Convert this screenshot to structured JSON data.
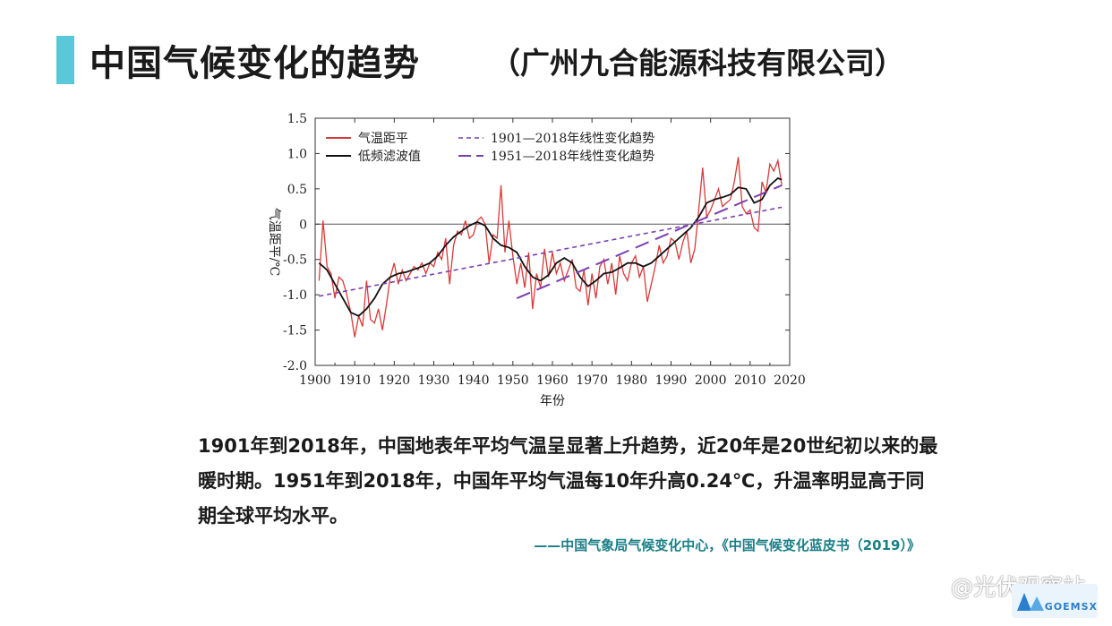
{
  "header": {
    "title": "中国气候变化的趋势",
    "company": "（广州九合能源科技有限公司）",
    "accent_color": "#5ac8d8"
  },
  "chart_data": {
    "type": "line",
    "xlabel": "年份",
    "ylabel": "气温距平/℃",
    "xlim": [
      1900,
      2020
    ],
    "ylim": [
      -2.0,
      1.5
    ],
    "xticks": [
      1900,
      1910,
      1920,
      1930,
      1940,
      1950,
      1960,
      1970,
      1980,
      1990,
      2000,
      2010,
      2020
    ],
    "yticks": [
      -2.0,
      -1.5,
      -1.0,
      -0.5,
      0,
      0.5,
      1.0,
      1.5
    ],
    "ytick_labels": [
      "-2.0",
      "-1.5",
      "-1.0",
      "-0.5",
      "0",
      "0.5",
      "1.0",
      "1.5"
    ],
    "legend_position": "top-left",
    "series": [
      {
        "name": "气温距平",
        "color": "#d93a3a",
        "x": [
          1901,
          1902,
          1903,
          1904,
          1905,
          1906,
          1907,
          1908,
          1909,
          1910,
          1911,
          1912,
          1913,
          1914,
          1915,
          1916,
          1917,
          1918,
          1919,
          1920,
          1921,
          1922,
          1923,
          1924,
          1925,
          1926,
          1927,
          1928,
          1929,
          1930,
          1931,
          1932,
          1933,
          1934,
          1935,
          1936,
          1937,
          1938,
          1939,
          1940,
          1941,
          1942,
          1943,
          1944,
          1945,
          1946,
          1947,
          1948,
          1949,
          1950,
          1951,
          1952,
          1953,
          1954,
          1955,
          1956,
          1957,
          1958,
          1959,
          1960,
          1961,
          1962,
          1963,
          1964,
          1965,
          1966,
          1967,
          1968,
          1969,
          1970,
          1971,
          1972,
          1973,
          1974,
          1975,
          1976,
          1977,
          1978,
          1979,
          1980,
          1981,
          1982,
          1983,
          1984,
          1985,
          1986,
          1987,
          1988,
          1989,
          1990,
          1991,
          1992,
          1993,
          1994,
          1995,
          1996,
          1997,
          1998,
          1999,
          2000,
          2001,
          2002,
          2003,
          2004,
          2005,
          2006,
          2007,
          2008,
          2009,
          2010,
          2011,
          2012,
          2013,
          2014,
          2015,
          2016,
          2017,
          2018
        ],
        "values": [
          -0.8,
          0.05,
          -0.6,
          -0.7,
          -1.05,
          -0.75,
          -0.8,
          -1.0,
          -1.25,
          -1.6,
          -1.3,
          -1.45,
          -0.8,
          -1.35,
          -1.4,
          -1.2,
          -1.5,
          -1.15,
          -0.75,
          -0.55,
          -0.85,
          -0.65,
          -0.8,
          -0.7,
          -0.6,
          -0.65,
          -0.55,
          -0.7,
          -0.55,
          -0.6,
          -0.4,
          -0.5,
          -0.2,
          -0.85,
          -0.3,
          -0.1,
          -0.15,
          0.05,
          -0.2,
          -0.15,
          0.05,
          0.1,
          0.0,
          -0.55,
          -0.15,
          -0.2,
          0.55,
          -0.4,
          0.05,
          -0.45,
          -0.85,
          -0.55,
          -0.9,
          -0.4,
          -1.2,
          -0.7,
          -0.9,
          -0.35,
          -0.75,
          -0.4,
          -0.7,
          -0.55,
          -0.8,
          -0.65,
          -0.5,
          -0.9,
          -0.95,
          -0.65,
          -1.15,
          -0.7,
          -1.05,
          -0.6,
          -0.5,
          -0.85,
          -0.55,
          -1.0,
          -0.45,
          -0.7,
          -0.8,
          -0.55,
          -0.45,
          -0.75,
          -0.6,
          -1.1,
          -0.85,
          -0.6,
          -0.3,
          -0.55,
          -0.45,
          -0.2,
          -0.25,
          -0.5,
          -0.25,
          -0.1,
          -0.55,
          -0.35,
          0.2,
          0.8,
          0.1,
          0.2,
          0.35,
          0.5,
          0.25,
          0.3,
          0.35,
          0.6,
          0.95,
          0.25,
          0.15,
          0.2,
          -0.05,
          -0.1,
          0.6,
          0.45,
          0.85,
          0.75,
          0.9,
          0.55
        ]
      },
      {
        "name": "低频滤波值",
        "color": "#111111",
        "x": [
          1901,
          1903,
          1905,
          1907,
          1909,
          1911,
          1913,
          1915,
          1917,
          1919,
          1921,
          1923,
          1925,
          1927,
          1929,
          1931,
          1933,
          1935,
          1937,
          1939,
          1941,
          1943,
          1945,
          1947,
          1949,
          1951,
          1953,
          1955,
          1957,
          1959,
          1961,
          1963,
          1965,
          1967,
          1969,
          1971,
          1973,
          1975,
          1977,
          1979,
          1981,
          1983,
          1985,
          1987,
          1989,
          1991,
          1993,
          1995,
          1997,
          1999,
          2001,
          2003,
          2005,
          2007,
          2009,
          2011,
          2013,
          2015,
          2017,
          2018
        ],
        "values": [
          -0.55,
          -0.65,
          -0.85,
          -1.05,
          -1.25,
          -1.3,
          -1.2,
          -1.05,
          -0.85,
          -0.75,
          -0.7,
          -0.68,
          -0.64,
          -0.6,
          -0.55,
          -0.45,
          -0.3,
          -0.18,
          -0.1,
          -0.02,
          0.03,
          -0.02,
          -0.2,
          -0.3,
          -0.33,
          -0.4,
          -0.6,
          -0.75,
          -0.8,
          -0.72,
          -0.55,
          -0.48,
          -0.55,
          -0.75,
          -0.88,
          -0.8,
          -0.7,
          -0.68,
          -0.62,
          -0.55,
          -0.55,
          -0.6,
          -0.55,
          -0.45,
          -0.35,
          -0.25,
          -0.15,
          -0.05,
          0.1,
          0.3,
          0.35,
          0.38,
          0.42,
          0.52,
          0.5,
          0.3,
          0.35,
          0.55,
          0.65,
          0.63
        ]
      },
      {
        "name": "1901—2018年线性变化趋势",
        "color": "#7b3fb0",
        "dash": "short",
        "x": [
          1901,
          2018
        ],
        "values": [
          -1.02,
          0.24
        ]
      },
      {
        "name": "1951—2018年线性变化趋势",
        "color": "#7b3fb0",
        "dash": "long",
        "x": [
          1951,
          2018
        ],
        "values": [
          -1.05,
          0.55
        ]
      }
    ]
  },
  "description": "1901年到2018年，中国地表年平均气温呈显著上升趋势，近20年是20世纪初以来的最暖时期。1951年到2018年，中国年平均气温每10年升高0.24℃，升温率明显高于同期全球平均水平。",
  "source": "——中国气象局气候变化中心，《中国气候变化蓝皮书（2019）》",
  "watermark": "@光伏观察站",
  "logo_text": "GOEMSX"
}
